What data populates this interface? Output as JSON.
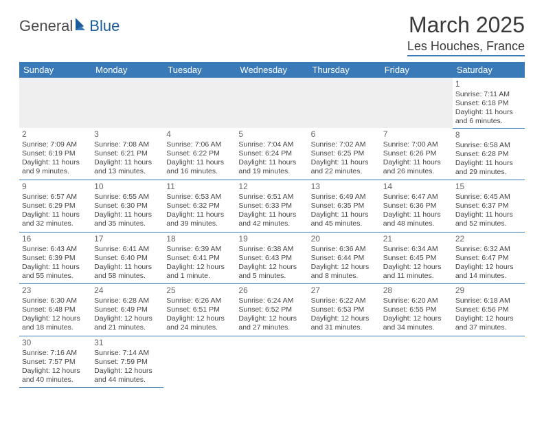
{
  "logo": {
    "word1": "General",
    "word2": "Blue"
  },
  "title": "March 2025",
  "location": "Les Houches, France",
  "dayHeaders": [
    "Sunday",
    "Monday",
    "Tuesday",
    "Wednesday",
    "Thursday",
    "Friday",
    "Saturday"
  ],
  "colors": {
    "headerBg": "#3a7ab8",
    "headerText": "#ffffff",
    "border": "#3a7ab8",
    "logoAccent": "#1b5b9a"
  },
  "weeks": [
    [
      {
        "day": "",
        "lines": []
      },
      {
        "day": "",
        "lines": []
      },
      {
        "day": "",
        "lines": []
      },
      {
        "day": "",
        "lines": []
      },
      {
        "day": "",
        "lines": []
      },
      {
        "day": "",
        "lines": []
      },
      {
        "day": "1",
        "lines": [
          "Sunrise: 7:11 AM",
          "Sunset: 6:18 PM",
          "Daylight: 11 hours",
          "and 6 minutes."
        ]
      }
    ],
    [
      {
        "day": "2",
        "lines": [
          "Sunrise: 7:09 AM",
          "Sunset: 6:19 PM",
          "Daylight: 11 hours",
          "and 9 minutes."
        ]
      },
      {
        "day": "3",
        "lines": [
          "Sunrise: 7:08 AM",
          "Sunset: 6:21 PM",
          "Daylight: 11 hours",
          "and 13 minutes."
        ]
      },
      {
        "day": "4",
        "lines": [
          "Sunrise: 7:06 AM",
          "Sunset: 6:22 PM",
          "Daylight: 11 hours",
          "and 16 minutes."
        ]
      },
      {
        "day": "5",
        "lines": [
          "Sunrise: 7:04 AM",
          "Sunset: 6:24 PM",
          "Daylight: 11 hours",
          "and 19 minutes."
        ]
      },
      {
        "day": "6",
        "lines": [
          "Sunrise: 7:02 AM",
          "Sunset: 6:25 PM",
          "Daylight: 11 hours",
          "and 22 minutes."
        ]
      },
      {
        "day": "7",
        "lines": [
          "Sunrise: 7:00 AM",
          "Sunset: 6:26 PM",
          "Daylight: 11 hours",
          "and 26 minutes."
        ]
      },
      {
        "day": "8",
        "lines": [
          "Sunrise: 6:58 AM",
          "Sunset: 6:28 PM",
          "Daylight: 11 hours",
          "and 29 minutes."
        ]
      }
    ],
    [
      {
        "day": "9",
        "lines": [
          "Sunrise: 6:57 AM",
          "Sunset: 6:29 PM",
          "Daylight: 11 hours",
          "and 32 minutes."
        ]
      },
      {
        "day": "10",
        "lines": [
          "Sunrise: 6:55 AM",
          "Sunset: 6:30 PM",
          "Daylight: 11 hours",
          "and 35 minutes."
        ]
      },
      {
        "day": "11",
        "lines": [
          "Sunrise: 6:53 AM",
          "Sunset: 6:32 PM",
          "Daylight: 11 hours",
          "and 39 minutes."
        ]
      },
      {
        "day": "12",
        "lines": [
          "Sunrise: 6:51 AM",
          "Sunset: 6:33 PM",
          "Daylight: 11 hours",
          "and 42 minutes."
        ]
      },
      {
        "day": "13",
        "lines": [
          "Sunrise: 6:49 AM",
          "Sunset: 6:35 PM",
          "Daylight: 11 hours",
          "and 45 minutes."
        ]
      },
      {
        "day": "14",
        "lines": [
          "Sunrise: 6:47 AM",
          "Sunset: 6:36 PM",
          "Daylight: 11 hours",
          "and 48 minutes."
        ]
      },
      {
        "day": "15",
        "lines": [
          "Sunrise: 6:45 AM",
          "Sunset: 6:37 PM",
          "Daylight: 11 hours",
          "and 52 minutes."
        ]
      }
    ],
    [
      {
        "day": "16",
        "lines": [
          "Sunrise: 6:43 AM",
          "Sunset: 6:39 PM",
          "Daylight: 11 hours",
          "and 55 minutes."
        ]
      },
      {
        "day": "17",
        "lines": [
          "Sunrise: 6:41 AM",
          "Sunset: 6:40 PM",
          "Daylight: 11 hours",
          "and 58 minutes."
        ]
      },
      {
        "day": "18",
        "lines": [
          "Sunrise: 6:39 AM",
          "Sunset: 6:41 PM",
          "Daylight: 12 hours",
          "and 1 minute."
        ]
      },
      {
        "day": "19",
        "lines": [
          "Sunrise: 6:38 AM",
          "Sunset: 6:43 PM",
          "Daylight: 12 hours",
          "and 5 minutes."
        ]
      },
      {
        "day": "20",
        "lines": [
          "Sunrise: 6:36 AM",
          "Sunset: 6:44 PM",
          "Daylight: 12 hours",
          "and 8 minutes."
        ]
      },
      {
        "day": "21",
        "lines": [
          "Sunrise: 6:34 AM",
          "Sunset: 6:45 PM",
          "Daylight: 12 hours",
          "and 11 minutes."
        ]
      },
      {
        "day": "22",
        "lines": [
          "Sunrise: 6:32 AM",
          "Sunset: 6:47 PM",
          "Daylight: 12 hours",
          "and 14 minutes."
        ]
      }
    ],
    [
      {
        "day": "23",
        "lines": [
          "Sunrise: 6:30 AM",
          "Sunset: 6:48 PM",
          "Daylight: 12 hours",
          "and 18 minutes."
        ]
      },
      {
        "day": "24",
        "lines": [
          "Sunrise: 6:28 AM",
          "Sunset: 6:49 PM",
          "Daylight: 12 hours",
          "and 21 minutes."
        ]
      },
      {
        "day": "25",
        "lines": [
          "Sunrise: 6:26 AM",
          "Sunset: 6:51 PM",
          "Daylight: 12 hours",
          "and 24 minutes."
        ]
      },
      {
        "day": "26",
        "lines": [
          "Sunrise: 6:24 AM",
          "Sunset: 6:52 PM",
          "Daylight: 12 hours",
          "and 27 minutes."
        ]
      },
      {
        "day": "27",
        "lines": [
          "Sunrise: 6:22 AM",
          "Sunset: 6:53 PM",
          "Daylight: 12 hours",
          "and 31 minutes."
        ]
      },
      {
        "day": "28",
        "lines": [
          "Sunrise: 6:20 AM",
          "Sunset: 6:55 PM",
          "Daylight: 12 hours",
          "and 34 minutes."
        ]
      },
      {
        "day": "29",
        "lines": [
          "Sunrise: 6:18 AM",
          "Sunset: 6:56 PM",
          "Daylight: 12 hours",
          "and 37 minutes."
        ]
      }
    ],
    [
      {
        "day": "30",
        "lines": [
          "Sunrise: 7:16 AM",
          "Sunset: 7:57 PM",
          "Daylight: 12 hours",
          "and 40 minutes."
        ]
      },
      {
        "day": "31",
        "lines": [
          "Sunrise: 7:14 AM",
          "Sunset: 7:59 PM",
          "Daylight: 12 hours",
          "and 44 minutes."
        ]
      },
      {
        "day": "",
        "lines": []
      },
      {
        "day": "",
        "lines": []
      },
      {
        "day": "",
        "lines": []
      },
      {
        "day": "",
        "lines": []
      },
      {
        "day": "",
        "lines": []
      }
    ]
  ]
}
